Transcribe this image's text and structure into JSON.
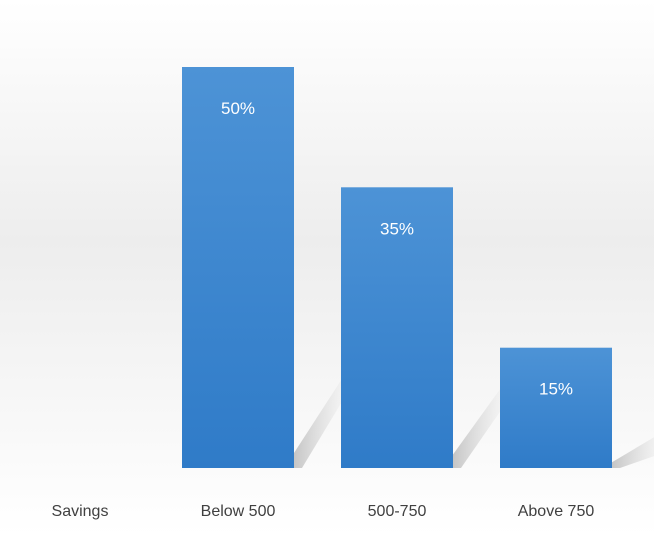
{
  "chart_data": {
    "type": "bar",
    "categories": [
      "Savings",
      "Below 500",
      "500-750",
      "Above 750"
    ],
    "values": [
      null,
      50,
      35,
      15
    ],
    "data_labels": [
      "",
      "50%",
      "35%",
      "15%"
    ],
    "unit": "%",
    "title": "",
    "xlabel": "",
    "ylabel": "",
    "ylim": [
      0,
      50
    ],
    "grid": false,
    "legend": "none",
    "bar_color": "#3c86cf"
  }
}
